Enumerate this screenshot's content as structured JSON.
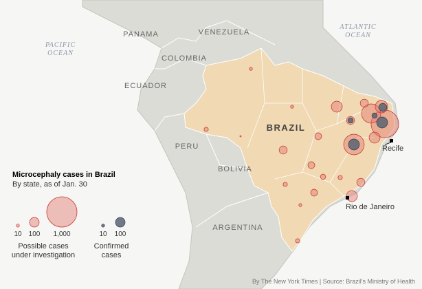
{
  "map": {
    "countries": [
      "PANAMA",
      "VENEZUELA",
      "COLOMBIA",
      "ECUADOR",
      "PERU",
      "BOLIVIA",
      "ARGENTINA",
      "BRAZIL"
    ],
    "oceans": [
      [
        "PACIFIC",
        "OCEAN"
      ],
      [
        "ATLANTIC",
        "OCEAN"
      ]
    ],
    "cities": [
      "Recife",
      "Rio de Janeiro"
    ],
    "possible_cases": [
      130,
      170,
      830,
      400,
      460,
      70,
      70,
      50,
      50,
      30,
      20,
      70,
      130,
      50,
      20,
      130,
      70,
      10,
      20,
      10,
      10,
      20,
      2
    ],
    "confirmed_cases": [
      70,
      130,
      30,
      130,
      30
    ]
  },
  "legend": {
    "title": "Microcephaly cases in Brazil",
    "subtitle": "By state, as of Jan. 30",
    "possible": {
      "sizes": [
        10,
        100,
        {
          "value": 1000,
          "label": "1,000"
        }
      ],
      "label": [
        "Possible cases",
        "under investigation"
      ]
    },
    "confirmed": {
      "sizes": [
        10,
        100
      ],
      "label": [
        "Confirmed",
        "cases"
      ]
    }
  },
  "credit": "By The New York Times | Source: Brazil's Ministry of Health"
}
